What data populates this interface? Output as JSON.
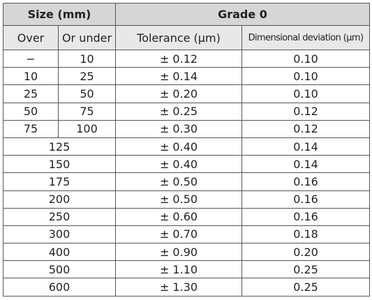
{
  "table": {
    "header": [
      [
        "Size (mm)",
        "Grade 0"
      ],
      [
        "Over",
        "Or under",
        "Tolerance (μm)",
        "Dimensional deviation (μm)"
      ]
    ],
    "rows": [
      [
        "−",
        "10",
        "± 0.12",
        "0.10"
      ],
      [
        "10",
        "25",
        "± 0.14",
        "0.10"
      ],
      [
        "25",
        "50",
        "± 0.20",
        "0.10"
      ],
      [
        "50",
        "75",
        "± 0.25",
        "0.12"
      ],
      [
        "75",
        "100",
        "± 0.30",
        "0.12"
      ],
      [
        "125",
        "± 0.40",
        "0.14"
      ],
      [
        "150",
        "± 0.40",
        "0.14"
      ],
      [
        "175",
        "± 0.50",
        "0.16"
      ],
      [
        "200",
        "± 0.50",
        "0.16"
      ],
      [
        "250",
        "± 0.60",
        "0.16"
      ],
      [
        "300",
        "± 0.70",
        "0.18"
      ],
      [
        "400",
        "± 0.90",
        "0.20"
      ],
      [
        "500",
        "± 1.10",
        "0.25"
      ],
      [
        "600",
        "± 1.30",
        "0.25"
      ]
    ]
  }
}
